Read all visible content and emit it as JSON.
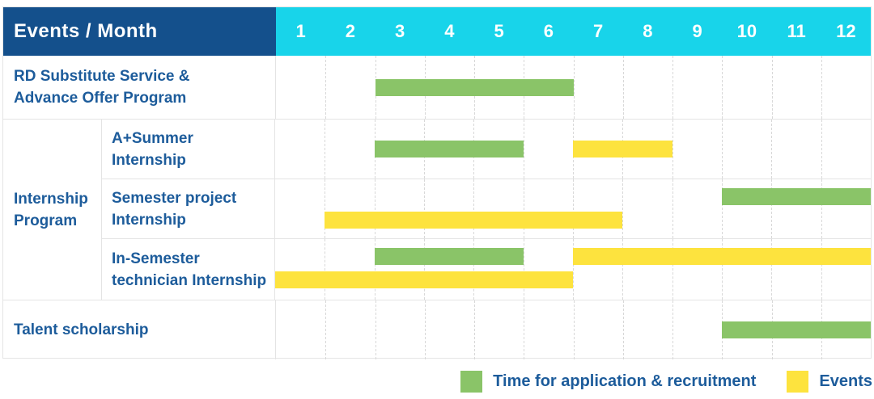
{
  "header": {
    "label": "Events / Month",
    "months": [
      "1",
      "2",
      "3",
      "4",
      "5",
      "6",
      "7",
      "8",
      "9",
      "10",
      "11",
      "12"
    ]
  },
  "rows": [
    {
      "kind": "simple",
      "label_lines": [
        "RD Substitute Service &",
        "Advance Offer Program"
      ],
      "bars": [
        {
          "type": "application",
          "start_month": 3,
          "end_month": 6,
          "line": "middle"
        }
      ]
    },
    {
      "kind": "group",
      "label_lines": [
        "Internship",
        "Program"
      ],
      "children": [
        {
          "label_lines": [
            "A+Summer",
            "Internship"
          ],
          "bars": [
            {
              "type": "application",
              "start_month": 3,
              "end_month": 5,
              "line": "middle"
            },
            {
              "type": "events",
              "start_month": 7,
              "end_month": 8,
              "line": "middle"
            }
          ]
        },
        {
          "label_lines": [
            "Semester project",
            "Internship"
          ],
          "bars": [
            {
              "type": "application",
              "start_month": 10,
              "end_month": 12,
              "line": "top"
            },
            {
              "type": "events",
              "start_month": 2,
              "end_month": 7,
              "line": "bottom"
            }
          ]
        },
        {
          "label_lines": [
            "In-Semester",
            "technician Internship"
          ],
          "bars": [
            {
              "type": "application",
              "start_month": 3,
              "end_month": 5,
              "line": "top"
            },
            {
              "type": "events",
              "start_month": 7,
              "end_month": 12,
              "line": "top"
            },
            {
              "type": "events",
              "start_month": 1,
              "end_month": 6,
              "line": "bottom"
            }
          ]
        }
      ]
    },
    {
      "kind": "simple",
      "label_lines": [
        "Talent scholarship"
      ],
      "bars": [
        {
          "type": "application",
          "start_month": 10,
          "end_month": 12,
          "line": "middle"
        }
      ]
    }
  ],
  "legend": {
    "items": [
      {
        "type": "application",
        "label": "Time for application & recruitment"
      },
      {
        "type": "events",
        "label": "Events"
      }
    ]
  },
  "colors": {
    "application": "#8ac468",
    "events": "#fde33e",
    "header_bg": "#14508c",
    "month_header_bg": "#18d4ea",
    "label_text": "#1d5c9b",
    "header_text": "#ffffff"
  },
  "chart_data": {
    "type": "table",
    "subtype": "gantt",
    "title": "Events / Month",
    "x_label": "Month",
    "x_ticks": [
      1,
      2,
      3,
      4,
      5,
      6,
      7,
      8,
      9,
      10,
      11,
      12
    ],
    "x_range": [
      1,
      12
    ],
    "grid": true,
    "legend_position": "bottom-right",
    "series_legend": [
      "Time for application & recruitment",
      "Events"
    ],
    "tasks": [
      {
        "row": "RD Substitute Service & Advance Offer Program",
        "group": null,
        "bars": [
          {
            "series": "Time for application & recruitment",
            "start_month": 3,
            "end_month": 6
          }
        ]
      },
      {
        "row": "A+Summer Internship",
        "group": "Internship Program",
        "bars": [
          {
            "series": "Time for application & recruitment",
            "start_month": 3,
            "end_month": 5
          },
          {
            "series": "Events",
            "start_month": 7,
            "end_month": 8
          }
        ]
      },
      {
        "row": "Semester project Internship",
        "group": "Internship Program",
        "bars": [
          {
            "series": "Time for application & recruitment",
            "start_month": 10,
            "end_month": 12
          },
          {
            "series": "Events",
            "start_month": 2,
            "end_month": 7
          }
        ]
      },
      {
        "row": "In-Semester technician Internship",
        "group": "Internship Program",
        "bars": [
          {
            "series": "Time for application & recruitment",
            "start_month": 3,
            "end_month": 5
          },
          {
            "series": "Events",
            "start_month": 7,
            "end_month": 12
          },
          {
            "series": "Events",
            "start_month": 1,
            "end_month": 6
          }
        ]
      },
      {
        "row": "Talent scholarship",
        "group": null,
        "bars": [
          {
            "series": "Time for application & recruitment",
            "start_month": 10,
            "end_month": 12
          }
        ]
      }
    ]
  }
}
